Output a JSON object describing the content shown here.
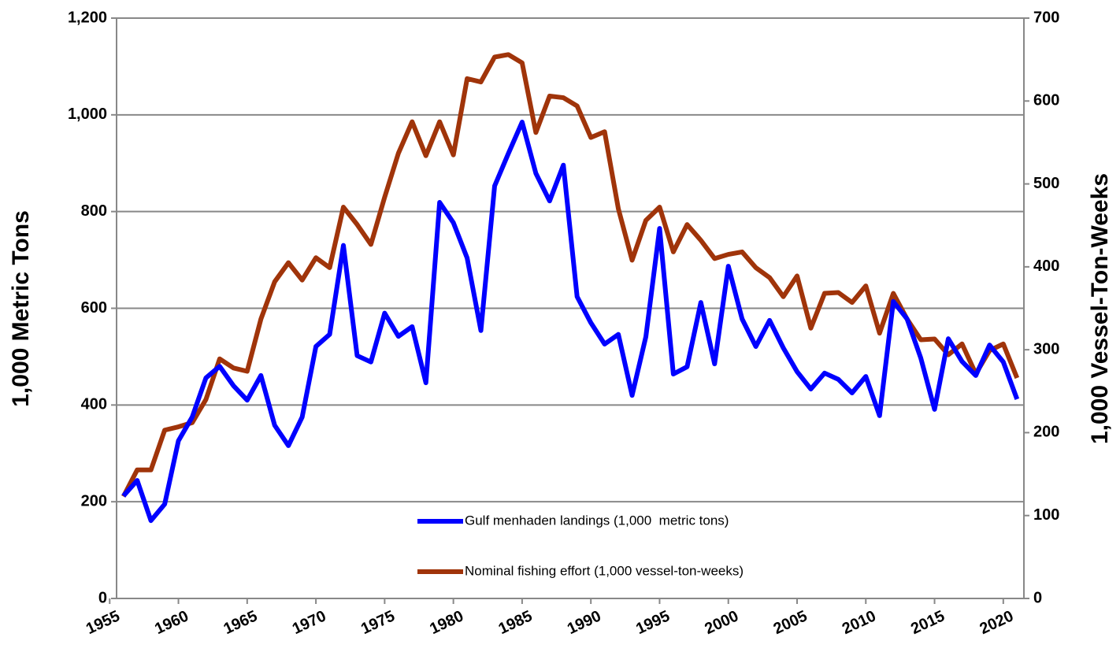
{
  "chart_data": {
    "type": "line",
    "x": [
      1956,
      1957,
      1958,
      1959,
      1960,
      1961,
      1962,
      1963,
      1964,
      1965,
      1966,
      1967,
      1968,
      1969,
      1970,
      1971,
      1972,
      1973,
      1974,
      1975,
      1976,
      1977,
      1978,
      1979,
      1980,
      1981,
      1982,
      1983,
      1984,
      1985,
      1986,
      1987,
      1988,
      1989,
      1990,
      1991,
      1992,
      1993,
      1994,
      1995,
      1996,
      1997,
      1998,
      1999,
      2000,
      2001,
      2002,
      2003,
      2004,
      2005,
      2006,
      2007,
      2008,
      2009,
      2010,
      2011,
      2012,
      2013,
      2014,
      2015,
      2016,
      2017,
      2018,
      2019,
      2020,
      2021
    ],
    "series": [
      {
        "name": "Gulf menhaden landings (1,000  metric tons)",
        "color": "#0000ff",
        "axis": "y",
        "values": [
          212,
          244,
          161,
          195,
          326,
          375,
          456,
          480,
          440,
          410,
          461,
          358,
          316,
          375,
          521,
          546,
          730,
          502,
          489,
          590,
          542,
          562,
          446,
          819,
          777,
          704,
          554,
          853,
          920,
          985,
          879,
          822,
          896,
          624,
          570,
          526,
          546,
          420,
          541,
          765,
          464,
          479,
          612,
          485,
          687,
          578,
          521,
          575,
          518,
          469,
          433,
          466,
          453,
          425,
          459,
          378,
          614,
          578,
          497,
          391,
          537,
          490,
          461,
          524,
          489,
          412
        ]
      },
      {
        "name": "Nominal fishing effort (1,000 vessel-ton-weeks)",
        "color": "#a0340a",
        "axis": "y2",
        "values": [
          123,
          155,
          155,
          203,
          207,
          212,
          240,
          289,
          278,
          274,
          337,
          382,
          405,
          384,
          411,
          399,
          472,
          451,
          427,
          484,
          537,
          575,
          534,
          575,
          535,
          627,
          623,
          653,
          656,
          646,
          562,
          606,
          604,
          594,
          556,
          563,
          470,
          408,
          456,
          472,
          418,
          451,
          432,
          410,
          415,
          418,
          399,
          387,
          364,
          389,
          326,
          368,
          369,
          357,
          377,
          320,
          368,
          337,
          312,
          313,
          294,
          307,
          271,
          299,
          307,
          266
        ]
      }
    ],
    "y_label": "1,000 Metric Tons",
    "y2_label": "1,000 Vessel-Ton-Weeks",
    "xlim": [
      1955.5,
      2021.5
    ],
    "xticks": [
      1955,
      1960,
      1965,
      1970,
      1975,
      1980,
      1985,
      1990,
      1995,
      2000,
      2005,
      2010,
      2015,
      2020
    ],
    "ylim": [
      0,
      1200
    ],
    "yticks": [
      0,
      200,
      400,
      600,
      800,
      {
        "value": 1000,
        "label": "1,000"
      },
      {
        "value": 1200,
        "label": "1,200"
      }
    ],
    "y2lim": [
      0,
      700
    ],
    "y2ticks": [
      0,
      100,
      200,
      300,
      400,
      500,
      600,
      700
    ],
    "grid": true
  }
}
